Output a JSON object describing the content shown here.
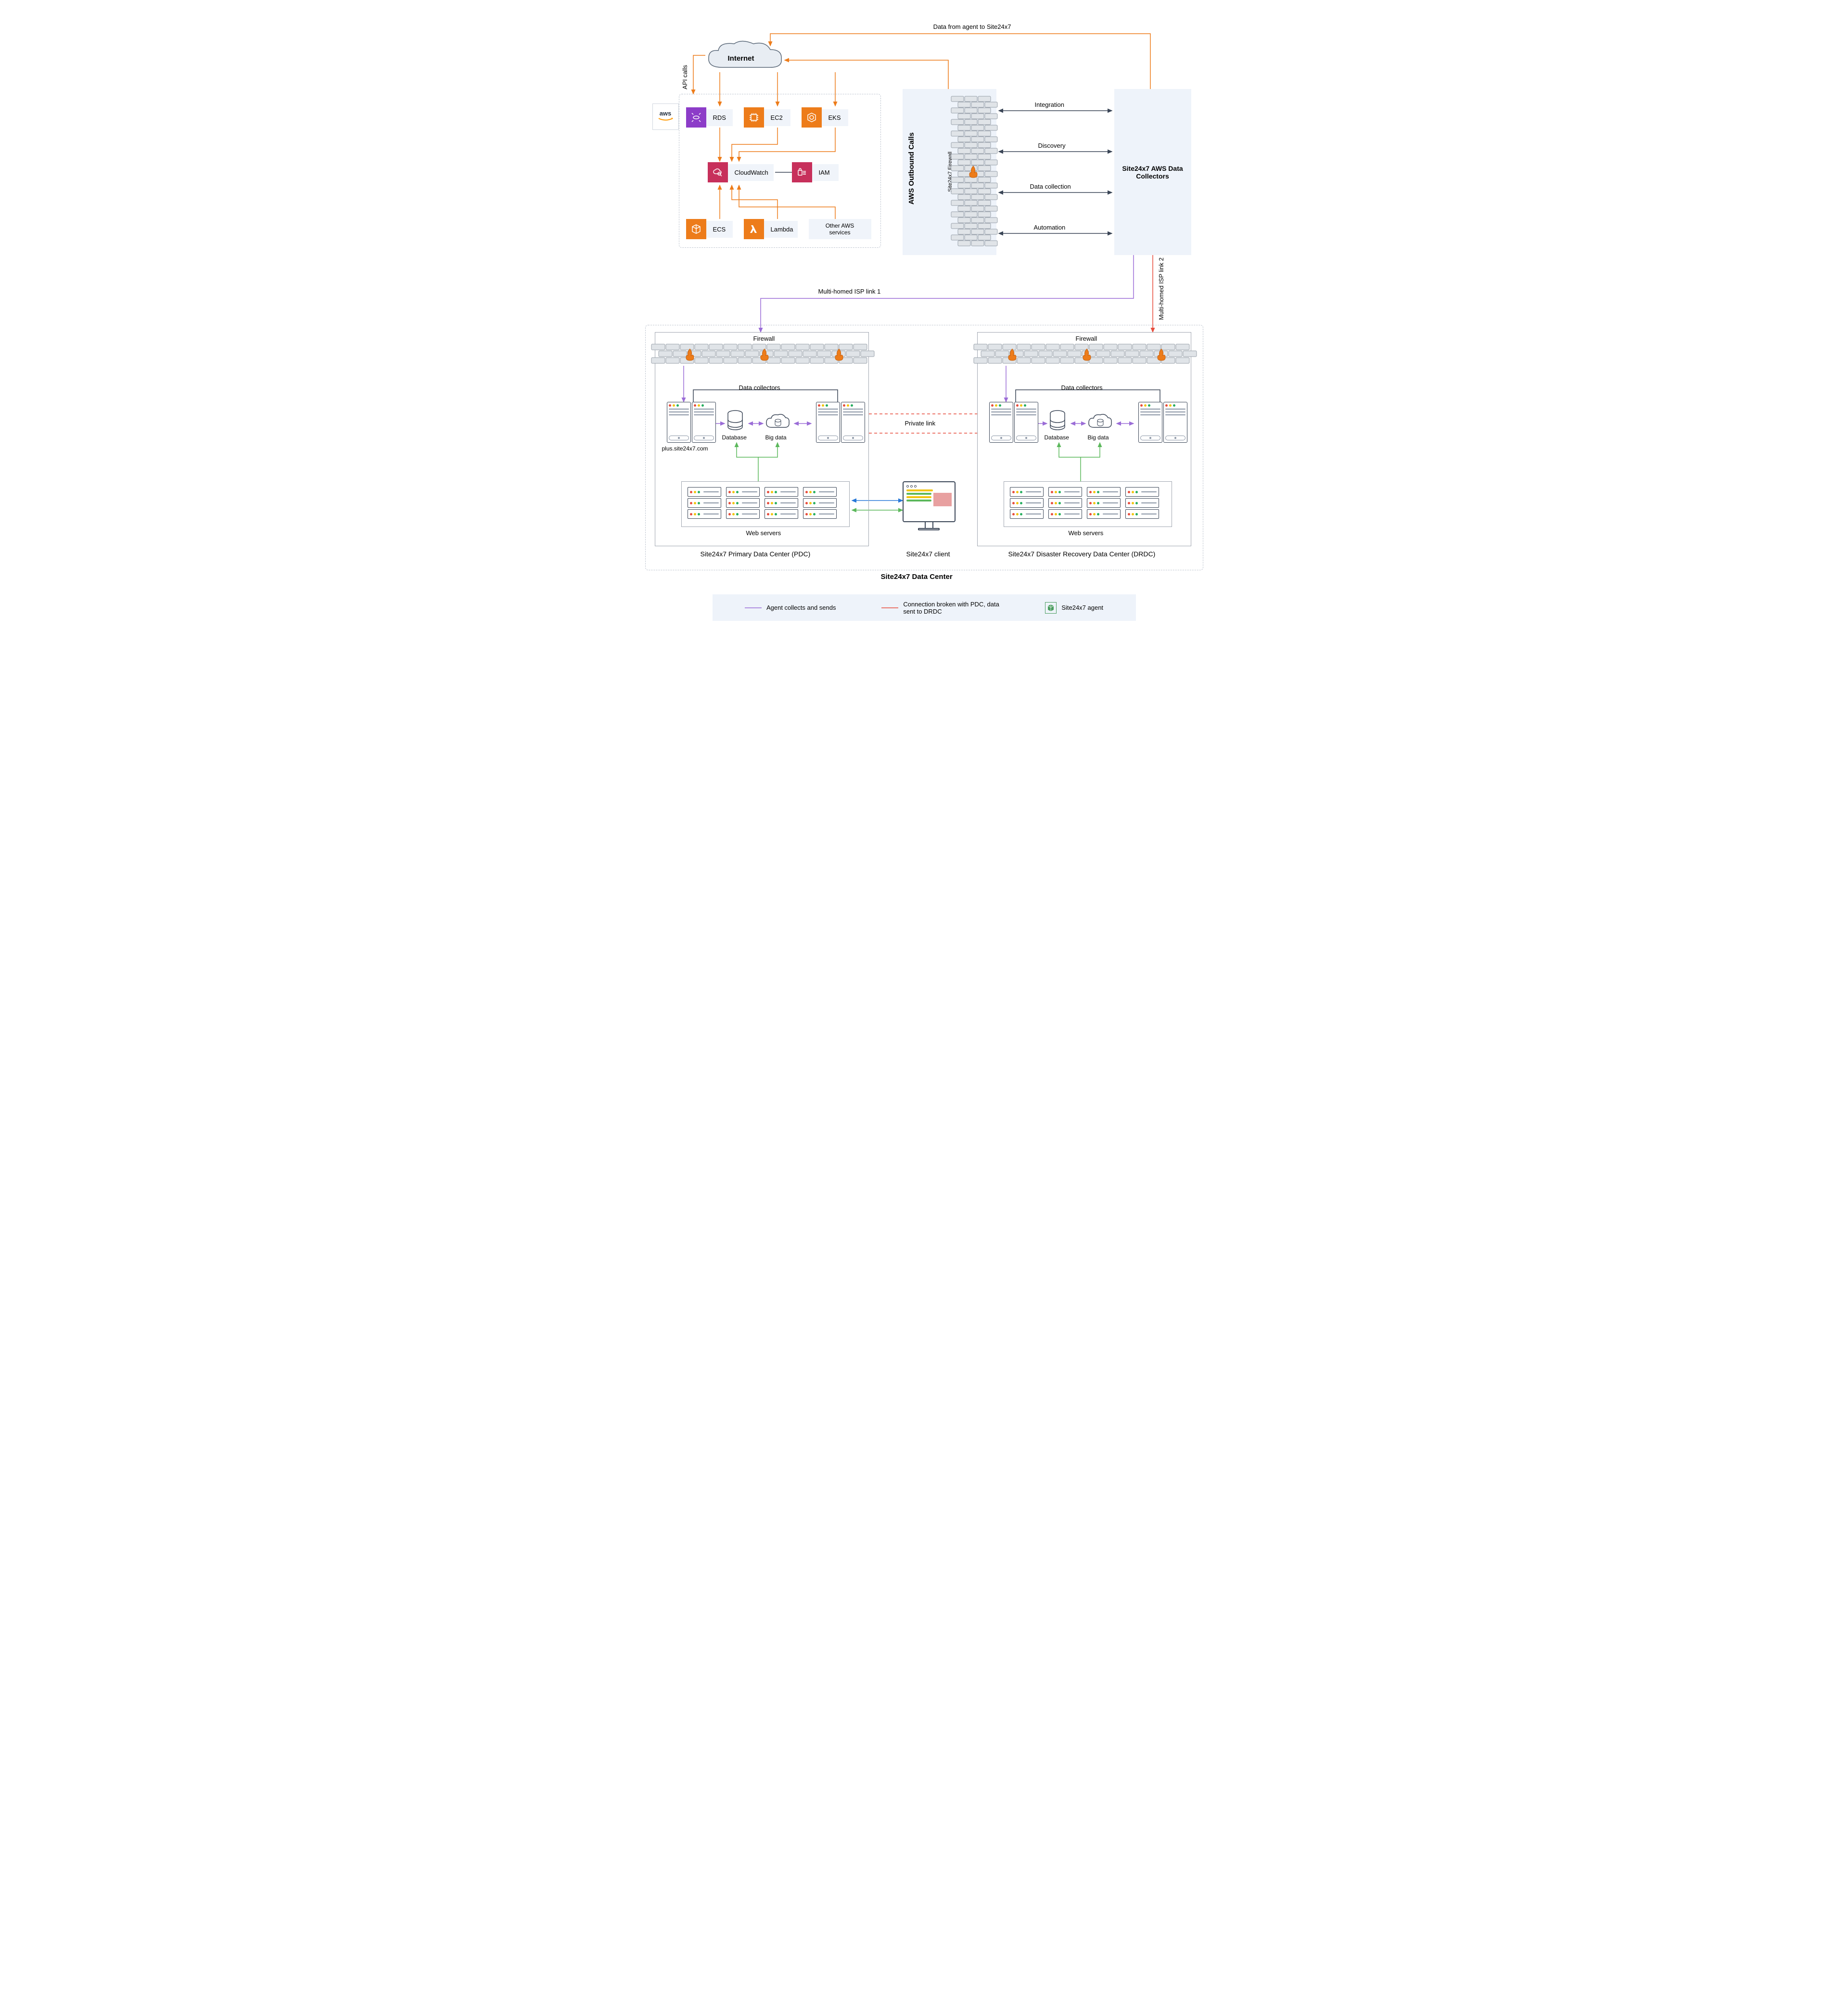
{
  "top_label": "Data from agent to Site24x7",
  "internet_label": "Internet",
  "api_calls_label": "API calls",
  "aws_label": "aws",
  "services": {
    "rds": {
      "label": "RDS",
      "color": "#8c3cc8"
    },
    "ec2": {
      "label": "EC2",
      "color": "#ed7c1a"
    },
    "eks": {
      "label": "EKS",
      "color": "#ed7c1a"
    },
    "cloudwatch": {
      "label": "CloudWatch",
      "color": "#c7305b"
    },
    "iam": {
      "label": "IAM",
      "color": "#c7305b"
    },
    "ecs": {
      "label": "ECS",
      "color": "#ed7c1a"
    },
    "lambda": {
      "label": "Lambda",
      "color": "#ed7c1a"
    },
    "other": {
      "label": "Other AWS services"
    }
  },
  "outbound_label": "AWS Outbound Calls",
  "firewall_label": "Site24x7 Firewall",
  "collectors_title": "Site24x7 AWS Data Collectors",
  "arrows": {
    "integration": "Integration",
    "discovery": "Discovery",
    "collection": "Data collection",
    "automation": "Automation"
  },
  "isp1_label": "Multi-homed ISP link 1",
  "isp2_label": "Multi-homed ISP link 2",
  "firewall_title": "Firewall",
  "data_collectors_label": "Data collectors",
  "database_label": "Database",
  "bigdata_label": "Big data",
  "plus_url": "plus.site24x7.com",
  "private_link": "Private link",
  "web_servers": "Web servers",
  "pdc_title": "Site24x7 Primary Data Center (PDC)",
  "client_title": "Site24x7 client",
  "drdc_title": "Site24x7 Disaster Recovery Data Center (DRDC)",
  "datacenter_title": "Site24x7 Data Center",
  "legend": {
    "agent": "Agent collects and sends",
    "broken": "Connection broken with PDC, data sent to DRDC",
    "site_agent": "Site24x7 agent"
  },
  "colors": {
    "orange": "#ed7c1a",
    "purple_line": "#9b6dd7",
    "red_line": "#e74c3c",
    "green_line": "#5cb85c",
    "blue_line": "#2878d8",
    "dark_arrow": "#3a4556",
    "light_bg": "#eef3fa",
    "service_bg": "#f0f4fa",
    "border_gray": "#a0a6b0",
    "dash_gray": "#bfc6d0",
    "brick_fill": "#e0e4e8",
    "brick_stroke": "#98a0aa",
    "server_red": "#e74c3c",
    "server_yellow": "#f1c40f",
    "server_green": "#27ae60",
    "agent_green": "#4a9d5f"
  }
}
